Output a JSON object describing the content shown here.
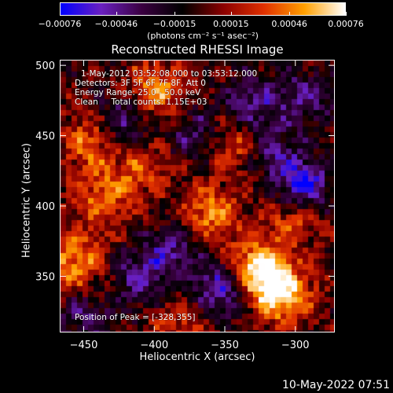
{
  "colorbar": {
    "ticks": [
      "-0.00076",
      "-0.00046",
      "-0.00015",
      "0.00015",
      "0.00046",
      "0.00076"
    ],
    "unit_label": "(photons cm⁻² s⁻¹ asec⁻²)",
    "colors": [
      "#0000ff",
      "#6a20c0",
      "#3a0040",
      "#000000",
      "#8a0000",
      "#e03000",
      "#ffa000",
      "#ffffff"
    ]
  },
  "title": "Reconstructed RHESSI Image",
  "annotations": {
    "time_range": "1-May-2012 03:52:08.000 to 03:53:12.000",
    "detectors": "Detectors: 3F 5F 6F 7F 8F, Att 0",
    "energy": "Energy Range: 25.0 - 50.0 keV",
    "clean": "Clean     Total counts: 1.15E+03",
    "peak": "Position of Peak = [-328,355]"
  },
  "footer_timestamp": "10-May-2022 07:51",
  "chart_data": {
    "type": "heatmap",
    "title": "Reconstructed RHESSI Image",
    "xlabel": "Heliocentric X (arcsec)",
    "ylabel": "Heliocentric Y (arcsec)",
    "xlim": [
      -467,
      -272
    ],
    "ylim": [
      310,
      504
    ],
    "xticks": [
      -450,
      -400,
      -350,
      -300
    ],
    "yticks": [
      350,
      400,
      450,
      500
    ],
    "xtick_labels": [
      "-450",
      "-400",
      "-350",
      "-300"
    ],
    "ytick_labels": [
      "350",
      "400",
      "450",
      "500"
    ],
    "colorbar_range": [
      -0.00076,
      0.00076
    ],
    "peak_position": [
      -328,
      355
    ],
    "bright_sources": [
      {
        "x": -328,
        "y": 355,
        "value": 0.00076
      },
      {
        "x": -310,
        "y": 338,
        "value": 0.0007
      },
      {
        "x": -445,
        "y": 447,
        "value": 0.0005
      },
      {
        "x": -400,
        "y": 483,
        "value": 0.00048
      },
      {
        "x": -362,
        "y": 395,
        "value": 0.00048
      },
      {
        "x": -456,
        "y": 360,
        "value": 0.00052
      },
      {
        "x": -438,
        "y": 405,
        "value": 0.0004
      },
      {
        "x": -345,
        "y": 444,
        "value": 0.00042
      },
      {
        "x": -303,
        "y": 392,
        "value": 0.00038
      },
      {
        "x": -412,
        "y": 428,
        "value": 0.00035
      },
      {
        "x": -382,
        "y": 318,
        "value": 0.0003
      }
    ],
    "dark_sources": [
      {
        "x": -425,
        "y": 458,
        "value": -0.0005
      },
      {
        "x": -353,
        "y": 342,
        "value": -0.0006
      },
      {
        "x": -296,
        "y": 415,
        "value": -0.0007
      },
      {
        "x": -330,
        "y": 473,
        "value": -0.00045
      },
      {
        "x": -368,
        "y": 450,
        "value": -0.0004
      },
      {
        "x": -410,
        "y": 350,
        "value": -0.00045
      },
      {
        "x": -388,
        "y": 370,
        "value": -0.0004
      },
      {
        "x": -450,
        "y": 320,
        "value": -0.00035
      },
      {
        "x": -292,
        "y": 478,
        "value": -0.0004
      },
      {
        "x": -318,
        "y": 440,
        "value": -0.00035
      }
    ]
  }
}
